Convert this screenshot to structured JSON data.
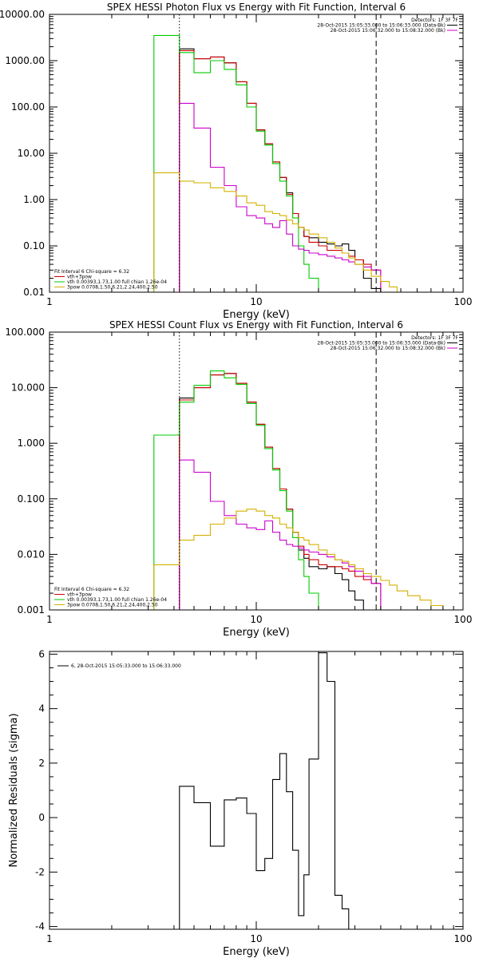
{
  "chart_data": [
    {
      "type": "line",
      "style": "step",
      "title": "SPEX HESSI Photon Flux vs Energy with Fit Function, Interval 6",
      "xlabel": "Energy (keV)",
      "ylabel": "",
      "xscale": "log",
      "yscale": "log",
      "xlim": [
        1,
        100
      ],
      "ylim": [
        0.01,
        10000
      ],
      "xticks": [
        1,
        10,
        100
      ],
      "xtick_labels": [
        "1",
        "10",
        "100"
      ],
      "yticks": [
        0.01,
        0.1,
        1,
        10,
        100,
        1000,
        10000
      ],
      "ytick_labels": [
        "0.01",
        "0.10",
        "1.00",
        "10.00",
        "100.00",
        "1000.00",
        "10000.00"
      ],
      "legend_tr": [
        {
          "text": "Detectors: 1F 3F 7F",
          "color": "#000000",
          "line": false
        },
        {
          "text": "28-Oct-2015 15:05:33.000 to 15:06:33.000 (Data-Bk)",
          "color": "#000000",
          "line": true
        },
        {
          "text": "28-Oct-2015 15:06:32.000 to 15:08:32.000 (Bk)",
          "color": "#cc00cc",
          "line": true
        }
      ],
      "legend_bl": [
        {
          "text": "Fit Interval 6   Chi-square = 6.32",
          "color": "#000000",
          "line": false
        },
        {
          "text": "vth+3pow",
          "color": "#cc0000",
          "line": true
        },
        {
          "text": "vth 0.00393,1.73,1.00  full chian 1.26e-04",
          "color": "#00cc00",
          "line": true
        },
        {
          "text": "3pow 0.0708,1.50,6.21,2.24,400,2.50",
          "color": "#d4b000",
          "line": true
        }
      ],
      "vlines": [
        {
          "x": 4.25,
          "style": "dotted"
        },
        {
          "x": 38,
          "style": "dashed"
        }
      ],
      "series": [
        {
          "color": "#000000",
          "edges": [
            4.25,
            5,
            6,
            7,
            8,
            9,
            10,
            11,
            12,
            13,
            14,
            15,
            16,
            17,
            18,
            20,
            22,
            24,
            26,
            28,
            30,
            33,
            36,
            40
          ],
          "values": [
            1800,
            1100,
            1200,
            900,
            350,
            120,
            32,
            16,
            6.5,
            3.0,
            1.4,
            0.5,
            0.25,
            0.16,
            0.15,
            0.12,
            0.11,
            0.1,
            0.11,
            0.08,
            0.05,
            0.02,
            0.012
          ]
        },
        {
          "color": "#cc0000",
          "edges": [
            4.25,
            5,
            6,
            7,
            8,
            9,
            10,
            11,
            12,
            13,
            14,
            15,
            16,
            17,
            18,
            20,
            22,
            24,
            26,
            28,
            30,
            33,
            36,
            40
          ],
          "values": [
            1650,
            1100,
            1200,
            900,
            350,
            120,
            32,
            16,
            6.5,
            3.0,
            1.3,
            0.5,
            0.25,
            0.16,
            0.12,
            0.1,
            0.08,
            0.08,
            0.07,
            0.06,
            0.05,
            0.04,
            0.03
          ]
        },
        {
          "color": "#00cc00",
          "edges": [
            3.2,
            4.25,
            5,
            6,
            7,
            8,
            9,
            10,
            11,
            12,
            13,
            14,
            15,
            16,
            17,
            18,
            20,
            21
          ],
          "values": [
            3500,
            1500,
            550,
            1000,
            650,
            300,
            100,
            30,
            15,
            6.0,
            2.5,
            1.2,
            0.4,
            0.1,
            0.04,
            0.02,
            0.005
          ]
        },
        {
          "color": "#cc00cc",
          "edges": [
            4.25,
            5,
            6,
            7,
            8,
            9,
            10,
            11,
            12,
            13,
            14,
            15,
            16,
            17,
            18,
            20,
            22,
            24,
            26,
            28,
            30,
            33,
            36,
            40
          ],
          "values": [
            120,
            35,
            5.0,
            2.0,
            0.7,
            0.45,
            0.4,
            0.3,
            0.25,
            0.35,
            0.18,
            0.1,
            0.085,
            0.08,
            0.07,
            0.065,
            0.06,
            0.055,
            0.05,
            0.045,
            0.04,
            0.035,
            0.03
          ]
        },
        {
          "color": "#d4b000",
          "edges": [
            3.2,
            4.25,
            5,
            6,
            7,
            8,
            9,
            10,
            11,
            12,
            13,
            14,
            15,
            16,
            17,
            18,
            20,
            22,
            24,
            26,
            28,
            30,
            33,
            36,
            40,
            44,
            48,
            54,
            62
          ],
          "values": [
            3.8,
            2.5,
            2.3,
            1.8,
            1.5,
            1.2,
            0.85,
            0.75,
            0.55,
            0.5,
            0.45,
            0.36,
            0.3,
            0.25,
            0.22,
            0.18,
            0.15,
            0.12,
            0.09,
            0.07,
            0.055,
            0.04,
            0.03,
            0.022,
            0.017,
            0.013,
            0.01,
            0.008
          ]
        }
      ]
    },
    {
      "type": "line",
      "style": "step",
      "title": "SPEX HESSI Count Flux vs Energy with Fit Function, Interval 6",
      "xlabel": "Energy (keV)",
      "ylabel": "",
      "xscale": "log",
      "yscale": "log",
      "xlim": [
        1,
        100
      ],
      "ylim": [
        0.001,
        100
      ],
      "xticks": [
        1,
        10,
        100
      ],
      "xtick_labels": [
        "1",
        "10",
        "100"
      ],
      "yticks": [
        0.001,
        0.01,
        0.1,
        1,
        10,
        100
      ],
      "ytick_labels": [
        "0.001",
        "0.010",
        "0.100",
        "1.000",
        "10.000",
        "100.000"
      ],
      "legend_tr": [
        {
          "text": "Detectors: 1F 3F 7F",
          "color": "#000000",
          "line": false
        },
        {
          "text": "28-Oct-2015 15:05:33.000 to 15:06:33.000 (Data-Bk)",
          "color": "#000000",
          "line": true
        },
        {
          "text": "28-Oct-2015 15:06:32.000 to 15:08:32.000 (Bk)",
          "color": "#cc00cc",
          "line": true
        }
      ],
      "legend_bl": [
        {
          "text": "Fit Interval 6   Chi-square = 6.32",
          "color": "#000000",
          "line": false
        },
        {
          "text": "vth+3pow",
          "color": "#cc0000",
          "line": true
        },
        {
          "text": "vth 0.00393,1.73,1.00  full chian 1.26e-04",
          "color": "#00cc00",
          "line": true
        },
        {
          "text": "3pow 0.0708,1.50,6.21,2.24,400,2.50",
          "color": "#d4b000",
          "line": true
        }
      ],
      "vlines": [
        {
          "x": 4.25,
          "style": "dotted"
        },
        {
          "x": 38,
          "style": "dashed"
        }
      ],
      "series": [
        {
          "color": "#000000",
          "edges": [
            4.25,
            5,
            6,
            7,
            8,
            9,
            10,
            11,
            12,
            13,
            14,
            15,
            16,
            17,
            18,
            20,
            22,
            24,
            26,
            28,
            30,
            33,
            36,
            40
          ],
          "values": [
            6.5,
            10.0,
            17.0,
            18.0,
            12.0,
            5.5,
            2.2,
            0.85,
            0.35,
            0.15,
            0.065,
            0.025,
            0.012,
            0.0085,
            0.006,
            0.0055,
            0.006,
            0.0045,
            0.0035,
            0.0022,
            0.0015,
            0.001,
            0.0008
          ]
        },
        {
          "color": "#cc0000",
          "edges": [
            4.25,
            5,
            6,
            7,
            8,
            9,
            10,
            11,
            12,
            13,
            14,
            15,
            16,
            17,
            18,
            20,
            22,
            24,
            26,
            28,
            30,
            33,
            36,
            40
          ],
          "values": [
            6.0,
            10.0,
            17.0,
            18.0,
            12.0,
            5.5,
            2.2,
            0.85,
            0.35,
            0.15,
            0.065,
            0.025,
            0.014,
            0.01,
            0.008,
            0.0065,
            0.006,
            0.006,
            0.0055,
            0.005,
            0.004,
            0.0035,
            0.003
          ]
        },
        {
          "color": "#00cc00",
          "edges": [
            3.2,
            4.25,
            5,
            6,
            7,
            8,
            9,
            10,
            11,
            12,
            13,
            14,
            15,
            16,
            17,
            18,
            20,
            21
          ],
          "values": [
            1.4,
            5.5,
            11.0,
            20.0,
            15.0,
            11.5,
            5.2,
            2.1,
            0.8,
            0.33,
            0.14,
            0.06,
            0.02,
            0.008,
            0.004,
            0.002,
            0.001
          ]
        },
        {
          "color": "#cc00cc",
          "edges": [
            4.25,
            5,
            6,
            7,
            8,
            9,
            10,
            11,
            12,
            13,
            14,
            15,
            16,
            17,
            18,
            20,
            22,
            24,
            26,
            28,
            30,
            33,
            36,
            40
          ],
          "values": [
            0.5,
            0.3,
            0.09,
            0.05,
            0.035,
            0.03,
            0.028,
            0.04,
            0.025,
            0.018,
            0.015,
            0.014,
            0.013,
            0.012,
            0.011,
            0.01,
            0.009,
            0.008,
            0.007,
            0.006,
            0.005,
            0.004,
            0.003
          ]
        },
        {
          "color": "#d4b000",
          "edges": [
            3.2,
            4.25,
            5,
            6,
            7,
            8,
            9,
            10,
            11,
            12,
            13,
            14,
            15,
            16,
            17,
            18,
            20,
            22,
            24,
            26,
            28,
            30,
            33,
            36,
            40,
            44,
            48,
            54,
            62,
            70,
            80,
            90
          ],
          "values": [
            0.0065,
            0.018,
            0.022,
            0.035,
            0.045,
            0.06,
            0.065,
            0.06,
            0.05,
            0.045,
            0.035,
            0.03,
            0.025,
            0.02,
            0.018,
            0.015,
            0.012,
            0.01,
            0.008,
            0.0075,
            0.0065,
            0.0055,
            0.0045,
            0.004,
            0.0034,
            0.0028,
            0.0022,
            0.0018,
            0.0015,
            0.0012,
            0.001
          ]
        }
      ]
    },
    {
      "type": "line",
      "style": "step",
      "title": "",
      "xlabel": "Energy (keV)",
      "ylabel": "Normalized Residuals (sigma)",
      "xscale": "log",
      "yscale": "linear",
      "xlim": [
        1,
        100
      ],
      "ylim": [
        -4.1,
        6.1
      ],
      "xticks": [
        1,
        10,
        100
      ],
      "xtick_labels": [
        "1",
        "10",
        "100"
      ],
      "yticks": [
        -4,
        -2,
        0,
        2,
        4,
        6
      ],
      "ytick_labels": [
        "-4",
        "-2",
        "0",
        "2",
        "4",
        "6"
      ],
      "legend_tl": [
        {
          "text": "6, 28-Oct-2015 15:05:33.000 to 15:06:33.000",
          "color": "#000000",
          "line": true
        }
      ],
      "vlines": [],
      "series": [
        {
          "color": "#000000",
          "edges": [
            4.25,
            5,
            6,
            7,
            8,
            9,
            10,
            11,
            12,
            13,
            14,
            15,
            16,
            17,
            18,
            20,
            22,
            24,
            26,
            28,
            30,
            33,
            36,
            40
          ],
          "values": [
            1.15,
            0.55,
            -1.05,
            0.65,
            0.72,
            0.15,
            -1.95,
            -1.5,
            1.4,
            2.35,
            0.95,
            -1.2,
            -3.6,
            -2.1,
            2.15,
            6.05,
            5.0,
            -2.85,
            -3.35,
            -4.1,
            -4.1,
            -4.1,
            -4.1
          ],
          "start_from": -4.1
        }
      ]
    }
  ]
}
